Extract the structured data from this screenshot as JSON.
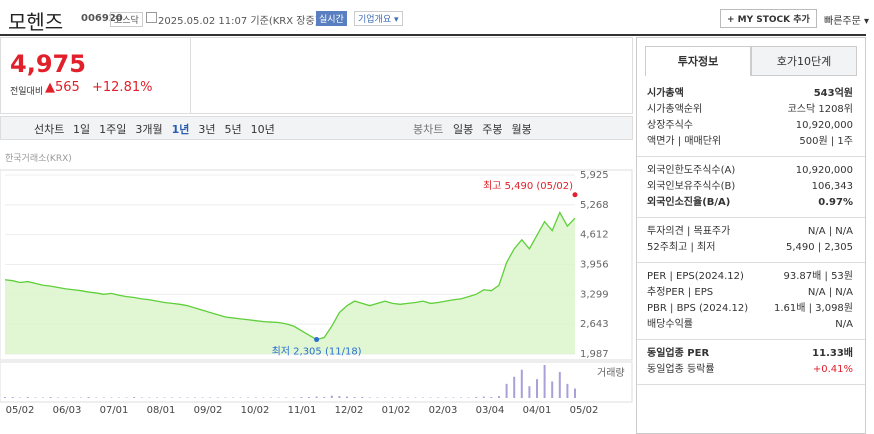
{
  "header": {
    "name": "모헨즈",
    "code": "006920",
    "market": "코스닥",
    "time": "2025.05.02 11:07 기준(KRX 장중)",
    "realtime": "실시간",
    "overview": "기업개요 ▾",
    "mystock": "+ MY STOCK 추가",
    "quick": "빠른주문 ▾"
  },
  "price": {
    "now": "4,975",
    "diff_label": "전일대비",
    "diff": "▲565",
    "rate": "+12.81%"
  },
  "tabs": {
    "line": "선차트",
    "line_items": [
      "1일",
      "1주일",
      "3개월",
      "1년",
      "3년",
      "5년",
      "10년"
    ],
    "candle": "봉차트",
    "candle_items": [
      "일봉",
      "주봉",
      "월봉"
    ]
  },
  "chart": {
    "type": "line",
    "source": "한국거래소(KRX)",
    "color": "#5fcf3a",
    "ylim": [
      1987,
      5925
    ],
    "yticks": [
      {
        "value": 1987,
        "label": "1,987"
      },
      {
        "value": 2643,
        "label": "2,643"
      },
      {
        "value": 3299,
        "label": "3,299"
      },
      {
        "value": 3956,
        "label": "3,956"
      },
      {
        "value": 4612,
        "label": "4,612"
      },
      {
        "value": 5268,
        "label": "5,268"
      },
      {
        "value": 5925,
        "label": "5,925"
      }
    ],
    "categories": [
      "05/02",
      "06/03",
      "07/01",
      "08/01",
      "09/02",
      "10/02",
      "11/01",
      "12/02",
      "01/02",
      "02/03",
      "03/04",
      "04/01",
      "05/02"
    ],
    "values": [
      3620,
      3600,
      3560,
      3580,
      3540,
      3500,
      3480,
      3450,
      3420,
      3400,
      3380,
      3350,
      3330,
      3300,
      3320,
      3280,
      3250,
      3230,
      3200,
      3180,
      3150,
      3120,
      3100,
      3080,
      3050,
      3000,
      2950,
      2900,
      2850,
      2800,
      2780,
      2760,
      2740,
      2720,
      2700,
      2690,
      2680,
      2650,
      2600,
      2500,
      2400,
      2305,
      2350,
      2600,
      2900,
      3050,
      3150,
      3100,
      3050,
      3100,
      3150,
      3100,
      3080,
      3100,
      3120,
      3150,
      3100,
      3120,
      3150,
      3180,
      3200,
      3250,
      3300,
      3400,
      3380,
      3500,
      4000,
      4300,
      4500,
      4300,
      4600,
      4900,
      4700,
      5100,
      4800,
      4975
    ],
    "high": {
      "value": 5490,
      "label": "최고 5,490 (05/02)"
    },
    "low": {
      "value": 2305,
      "label": "최저 2,305 (11/18)"
    },
    "volume_label": "거래량",
    "volume": [
      2,
      2,
      1,
      2,
      1,
      1,
      2,
      1,
      1,
      1,
      1,
      2,
      1,
      1,
      1,
      1,
      1,
      2,
      1,
      1,
      1,
      1,
      1,
      1,
      1,
      1,
      1,
      1,
      1,
      1,
      1,
      1,
      1,
      1,
      1,
      1,
      1,
      1,
      1,
      2,
      2,
      3,
      2,
      5,
      4,
      3,
      2,
      2,
      1,
      1,
      1,
      1,
      1,
      1,
      1,
      1,
      1,
      1,
      1,
      1,
      1,
      1,
      2,
      3,
      2,
      4,
      30,
      45,
      60,
      25,
      40,
      70,
      35,
      55,
      30,
      20
    ]
  },
  "panel": {
    "tabs": [
      "투자정보",
      "호가10단계"
    ],
    "groups": [
      [
        [
          "시가총액",
          "543억원"
        ],
        [
          "시가총액순위",
          "코스닥 1208위"
        ],
        [
          "상장주식수",
          "10,920,000"
        ],
        [
          "액면가 | 매매단위",
          "500원 | 1주"
        ]
      ],
      [
        [
          "외국인한도주식수(A)",
          "10,920,000"
        ],
        [
          "외국인보유주식수(B)",
          "106,343"
        ],
        [
          "외국인소진율(B/A)",
          "0.97%"
        ]
      ],
      [
        [
          "투자의견 | 목표주가",
          "N/A | N/A"
        ],
        [
          "52주최고 | 최저",
          "5,490 | 2,305"
        ]
      ],
      [
        [
          "PER | EPS(2024.12)",
          "93.87배 | 53원"
        ],
        [
          "추정PER | EPS",
          "N/A | N/A"
        ],
        [
          "PBR | BPS (2024.12)",
          "1.61배 | 3,098원"
        ],
        [
          "배당수익률",
          "N/A"
        ]
      ],
      [
        [
          "동일업종 PER",
          "11.33배"
        ],
        [
          "동일업종 등락률",
          "+0.41%"
        ]
      ]
    ]
  }
}
